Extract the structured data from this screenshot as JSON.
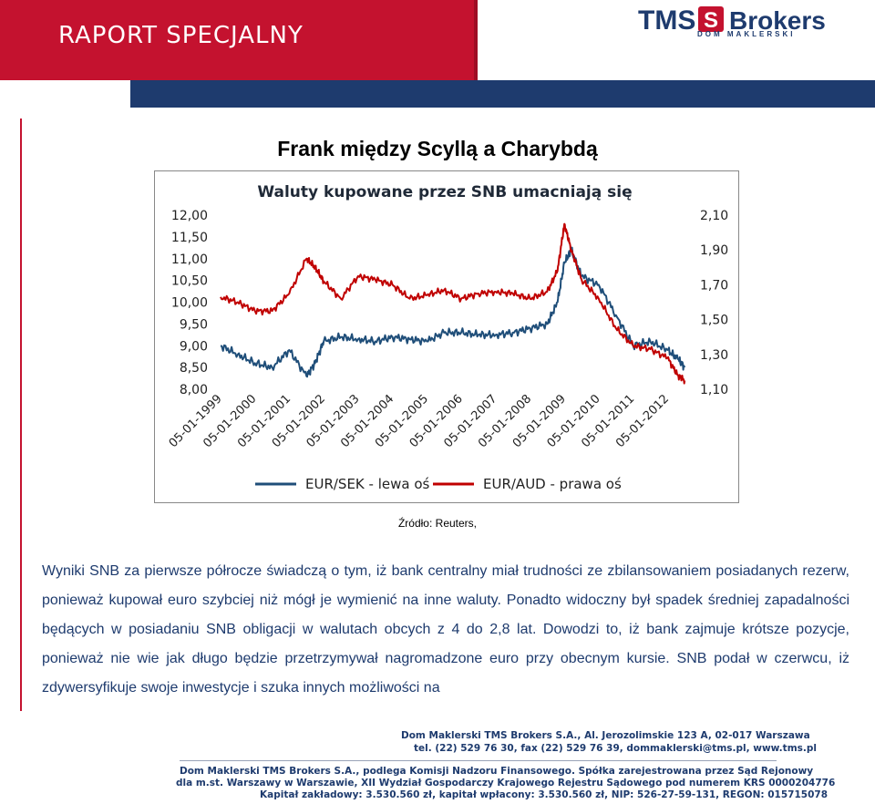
{
  "header": {
    "report_label": "RAPORT SPECJALNY",
    "logo_text": "TMS Brokers",
    "logo_subtext": "DOM MAKLERSKI",
    "colors": {
      "red": "#c4122f",
      "navy": "#1e3b6e"
    }
  },
  "title": "Frank między Scyllą a Charybdą",
  "chart_data": {
    "type": "line",
    "title": "Waluty kupowane przez SNB umacniają się",
    "x_tick_labels": [
      "05-01-1999",
      "05-01-2000",
      "05-01-2001",
      "05-01-2002",
      "05-01-2003",
      "05-01-2004",
      "05-01-2005",
      "05-01-2006",
      "05-01-2007",
      "05-01-2008",
      "05-01-2009",
      "05-01-2010",
      "05-01-2011",
      "05-01-2012"
    ],
    "y_left": {
      "ticks": [
        "12,00",
        "11,50",
        "11,00",
        "10,50",
        "10,00",
        "9,50",
        "9,00",
        "8,50",
        "8,00"
      ],
      "range": [
        8.0,
        12.0
      ]
    },
    "y_right": {
      "ticks": [
        "2,10",
        "1,90",
        "1,70",
        "1,50",
        "1,30",
        "1,10"
      ],
      "range": [
        1.1,
        2.1
      ]
    },
    "x": [
      1999.0,
      1999.5,
      2000.0,
      2000.5,
      2001.0,
      2001.5,
      2001.75,
      2002.0,
      2002.5,
      2003.0,
      2003.5,
      2004.0,
      2004.5,
      2005.0,
      2005.5,
      2006.0,
      2006.5,
      2007.0,
      2007.5,
      2008.0,
      2008.5,
      2008.8,
      2009.0,
      2009.2,
      2009.5,
      2010.0,
      2010.5,
      2011.0,
      2011.5,
      2012.0,
      2012.3,
      2012.5
    ],
    "series": [
      {
        "name": "EUR/SEK - lewa oś",
        "axis": "left",
        "color": "#1f4e79",
        "values": [
          9.0,
          8.8,
          8.6,
          8.5,
          8.9,
          8.3,
          8.6,
          9.1,
          9.2,
          9.15,
          9.1,
          9.2,
          9.15,
          9.1,
          9.3,
          9.3,
          9.25,
          9.25,
          9.3,
          9.4,
          9.5,
          10.0,
          10.9,
          11.2,
          10.6,
          10.4,
          9.7,
          9.0,
          9.1,
          8.9,
          8.7,
          8.5
        ]
      },
      {
        "name": "EUR/AUD - prawa oś",
        "axis": "right",
        "color": "#c00000",
        "values": [
          1.63,
          1.6,
          1.55,
          1.55,
          1.65,
          1.85,
          1.8,
          1.72,
          1.62,
          1.75,
          1.73,
          1.7,
          1.62,
          1.64,
          1.67,
          1.62,
          1.65,
          1.66,
          1.65,
          1.62,
          1.66,
          1.78,
          2.05,
          1.9,
          1.73,
          1.62,
          1.45,
          1.35,
          1.33,
          1.28,
          1.18,
          1.15
        ]
      }
    ],
    "legend_position": "bottom",
    "grid": false
  },
  "source_note": "Źródło: Reuters,",
  "body_text": "Wyniki SNB za pierwsze półrocze świadczą o tym, iż bank centralny miał trudności ze zbilansowaniem posiadanych rezerw, ponieważ kupował euro szybciej niż mógł je wymienić na inne waluty. Ponadto widoczny był spadek średniej zapadalności będących w posiadaniu SNB obligacji w walutach obcych z 4 do 2,8 lat. Dowodzi to, iż bank zajmuje krótsze pozycje, ponieważ nie wie jak długo będzie przetrzymywał nagromadzone euro przy obecnym kursie. SNB podał w czerwcu, iż zdywersyfikuje swoje inwestycje i szuka innych możliwości na",
  "footer": {
    "line1": "Dom Maklerski TMS Brokers S.A., Al. Jerozolimskie 123 A, 02-017 Warszawa",
    "line2": "tel. (22) 529 76 30, fax (22) 529 76 39, dommaklerski@tms.pl, www.tms.pl",
    "line3": "Dom Maklerski TMS Brokers S.A., podlega Komisji Nadzoru Finansowego. Spółka zarejestrowana przez Sąd Rejonowy",
    "line4": "dla m.st. Warszawy w Warszawie, XII Wydział Gospodarczy Krajowego Rejestru Sądowego pod numerem KRS 0000204776",
    "line5": "Kapitał zakładowy: 3.530.560 zł, kapitał wpłacony: 3.530.560 zł, NIP: 526-27-59-131, REGON: 015715078"
  }
}
